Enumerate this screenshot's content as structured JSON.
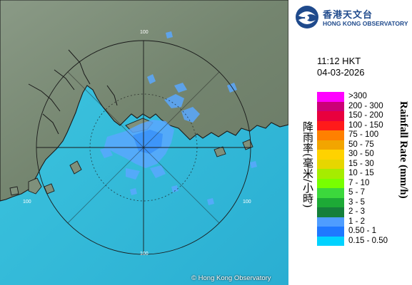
{
  "header": {
    "org_name_cn": "香港天文台",
    "org_name_en": "HONG KONG OBSERVATORY",
    "logo_icon": "hko-logo-icon",
    "time": "11:12 HKT",
    "date": "04-03-2026"
  },
  "legend": {
    "title_cn": "降雨率(毫米/小時)",
    "title_en": "Rainfall Rate (mm/h)",
    "items": [
      {
        "label": ">300",
        "color": "#ff00ff"
      },
      {
        "label": "200 - 300",
        "color": "#cc0077"
      },
      {
        "label": "150 - 200",
        "color": "#e8003e"
      },
      {
        "label": "100 - 150",
        "color": "#ff1a1a"
      },
      {
        "label": "75 - 100",
        "color": "#ff8000"
      },
      {
        "label": "50 - 75",
        "color": "#f2a500"
      },
      {
        "label": "30 - 50",
        "color": "#ffd200"
      },
      {
        "label": "15 - 30",
        "color": "#e6d600"
      },
      {
        "label": "10 - 15",
        "color": "#a6ec00"
      },
      {
        "label": "7 - 10",
        "color": "#78ff00"
      },
      {
        "label": "5 - 7",
        "color": "#3cd83c"
      },
      {
        "label": "3 - 5",
        "color": "#1daa36"
      },
      {
        "label": "2 - 3",
        "color": "#157f3b"
      },
      {
        "label": "1 - 2",
        "color": "#4f9dff"
      },
      {
        "label": "0.50 - 1",
        "color": "#1f78ff"
      },
      {
        "label": "0.15 - 0.50",
        "color": "#00d2ff"
      }
    ]
  },
  "map": {
    "range_ring_labels": [
      "100",
      "100",
      "100",
      "100"
    ],
    "copyright": "© Hong Kong Observatory"
  }
}
